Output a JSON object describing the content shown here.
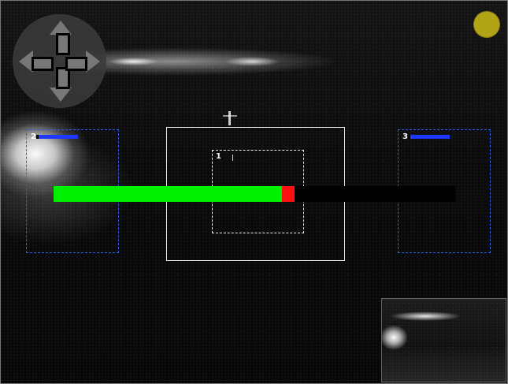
{
  "controls": {
    "joystick_icon": "joystick-icon",
    "status_dot_icon": "status-dot-icon",
    "status_color": "#b3a316"
  },
  "zones": {
    "left": {
      "label": "2",
      "accent": "#1e37ff"
    },
    "center": {
      "label": "1"
    },
    "right": {
      "label": "3",
      "accent": "#1e37ff"
    }
  },
  "progress": {
    "fill_fraction": 0.568,
    "fill_color": "#00f000",
    "cursor_color": "#ff1010",
    "track_color": "#000000"
  }
}
